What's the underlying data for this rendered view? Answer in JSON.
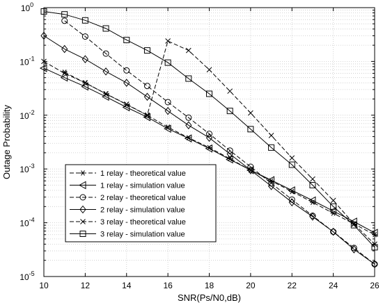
{
  "chart_data": {
    "type": "line",
    "title": "",
    "xlabel": "SNR(Ps/N0,dB)",
    "ylabel": "Outage Probability",
    "xlim": [
      10,
      26
    ],
    "ylim": [
      1e-05,
      1
    ],
    "yscale": "log",
    "grid": true,
    "x_ticks": [
      10,
      12,
      14,
      16,
      18,
      20,
      22,
      24,
      26
    ],
    "x_tick_labels": [
      "10",
      "12",
      "14",
      "16",
      "18",
      "20",
      "22",
      "24",
      "26"
    ],
    "y_ticks": [
      1e-05,
      0.0001,
      0.001,
      0.01,
      0.1,
      1
    ],
    "y_tick_labels": [
      {
        "base": "10",
        "exp": "-5"
      },
      {
        "base": "10",
        "exp": "-4"
      },
      {
        "base": "10",
        "exp": "-3"
      },
      {
        "base": "10",
        "exp": "-2"
      },
      {
        "base": "10",
        "exp": "-1"
      },
      {
        "base": "10",
        "exp": "0"
      }
    ],
    "legend_position": "bottom-left",
    "series": [
      {
        "name": "1 relay - theoretical value",
        "marker": "asterisk",
        "dash": true,
        "x": [
          11,
          12,
          13,
          14,
          15,
          16,
          17,
          18,
          19,
          20,
          21,
          22,
          23,
          24,
          25,
          26
        ],
        "y": [
          0.063,
          0.04,
          0.025,
          0.0158,
          0.01,
          0.006,
          0.0038,
          0.0025,
          0.00155,
          0.00095,
          0.0006,
          0.00038,
          0.00024,
          0.00015,
          9.5e-05,
          6e-05
        ]
      },
      {
        "name": "1 relay - simulation value",
        "marker": "triangle-left",
        "dash": false,
        "x": [
          10,
          11,
          12,
          13,
          14,
          15,
          16,
          17,
          18,
          19,
          20,
          21,
          22,
          23,
          24,
          25,
          26
        ],
        "y": [
          0.075,
          0.05,
          0.034,
          0.022,
          0.014,
          0.0092,
          0.0056,
          0.0037,
          0.0024,
          0.0015,
          0.00095,
          0.00062,
          0.0004,
          0.00026,
          0.000165,
          0.000105,
          6.5e-05
        ]
      },
      {
        "name": "2 relay - theoretical value",
        "marker": "circle",
        "dash": true,
        "x": [
          11,
          12,
          13,
          14,
          15,
          16,
          17,
          18,
          19,
          20,
          21,
          22,
          23,
          24,
          25,
          26
        ],
        "y": [
          0.57,
          0.29,
          0.14,
          0.068,
          0.035,
          0.0175,
          0.009,
          0.0045,
          0.0022,
          0.0011,
          0.00054,
          0.00027,
          0.000135,
          6.8e-05,
          3.4e-05,
          1.7e-05
        ]
      },
      {
        "name": "2 relay - simulation value",
        "marker": "diamond",
        "dash": false,
        "x": [
          10,
          11,
          12,
          13,
          14,
          15,
          16,
          17,
          18,
          19,
          20,
          21,
          22,
          23,
          24,
          25,
          26
        ],
        "y": [
          0.3,
          0.17,
          0.11,
          0.065,
          0.04,
          0.022,
          0.012,
          0.0065,
          0.0038,
          0.0019,
          0.00095,
          0.00048,
          0.00024,
          0.00013,
          6.8e-05,
          3.2e-05,
          1.7e-05
        ]
      },
      {
        "name": "3 relay - theoretical value",
        "marker": "x",
        "dash": true,
        "x": [
          10,
          11,
          12,
          13,
          14,
          15,
          16,
          17,
          18,
          19,
          20,
          21,
          22,
          23,
          24,
          25,
          26
        ],
        "y": [
          0.1,
          0.06,
          0.04,
          0.025,
          0.016,
          0.01,
          0.24,
          0.16,
          0.07,
          0.028,
          0.011,
          0.0042,
          0.0016,
          0.00065,
          0.00026,
          9.5e-05,
          4e-05
        ]
      },
      {
        "name": "3 relay - simulation value",
        "marker": "square",
        "dash": false,
        "x": [
          10,
          11,
          12,
          13,
          14,
          15,
          16,
          17,
          18,
          19,
          20,
          21,
          22,
          23,
          24,
          25,
          26
        ],
        "y": [
          0.85,
          0.75,
          0.58,
          0.41,
          0.25,
          0.16,
          0.095,
          0.048,
          0.025,
          0.012,
          0.0055,
          0.0025,
          0.0012,
          0.0005,
          0.0002,
          9e-05,
          3.5e-05
        ]
      }
    ]
  }
}
